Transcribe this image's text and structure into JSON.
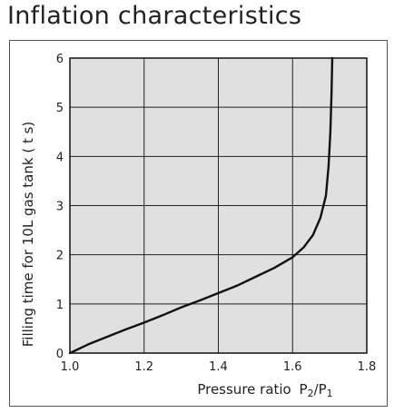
{
  "page": {
    "heading": "Inflation characteristics"
  },
  "chart_data": {
    "type": "line",
    "title": "",
    "xlabel": "Pressure ratio",
    "xlabel_symbol": {
      "p2": "P",
      "p2_sub": "2",
      "slash": "/",
      "p1": "P",
      "p1_sub": "1"
    },
    "ylabel": "Filling time for 10L gas tank ( t s)",
    "xlim": [
      1.0,
      1.8
    ],
    "ylim": [
      0,
      6
    ],
    "x_ticks": [
      "1.0",
      "1.2",
      "1.4",
      "1.6",
      "1.8"
    ],
    "y_ticks": [
      "0",
      "1",
      "2",
      "3",
      "4",
      "5",
      "6"
    ],
    "grid": true,
    "colors": {
      "plot_background": "#e0e0e0",
      "line": "#111111",
      "grid": "#222222"
    },
    "series": [
      {
        "x": [
          1.0,
          1.05,
          1.1,
          1.15,
          1.2,
          1.25,
          1.3,
          1.35,
          1.4,
          1.45,
          1.5,
          1.55,
          1.6,
          1.63,
          1.655,
          1.675,
          1.69,
          1.697,
          1.702,
          1.705,
          1.707
        ],
        "y": [
          0.0,
          0.18,
          0.33,
          0.48,
          0.62,
          0.77,
          0.93,
          1.07,
          1.22,
          1.37,
          1.55,
          1.73,
          1.95,
          2.15,
          2.4,
          2.75,
          3.2,
          3.8,
          4.5,
          5.3,
          6.0
        ]
      }
    ]
  }
}
